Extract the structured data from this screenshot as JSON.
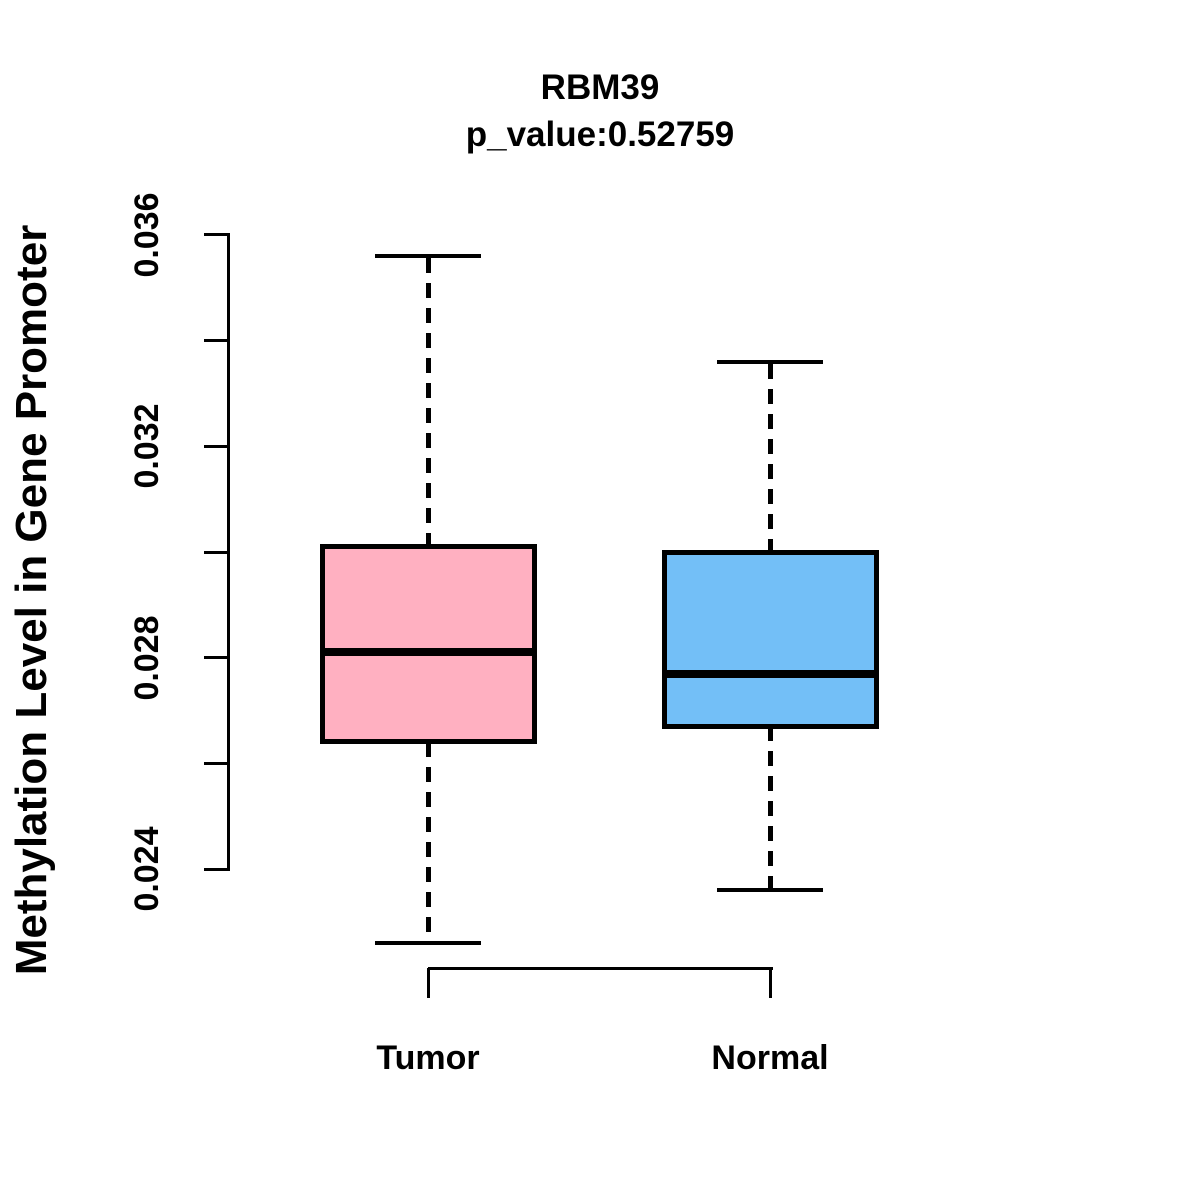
{
  "chart_data": {
    "type": "boxplot",
    "title": "RBM39",
    "subtitle": "p_value:0.52759",
    "gene": "RBM39",
    "p_value": 0.52759,
    "ylabel": "Methylation Level in Gene Promoter",
    "xlabel": "",
    "categories": [
      "Tumor",
      "Normal"
    ],
    "y_axis": {
      "min": 0.024,
      "max": 0.036,
      "tick_step": 0.002,
      "tick_labels": [
        "0.024",
        "0.028",
        "0.032",
        "0.036"
      ]
    },
    "line_color": "#000000",
    "background_color": "#ffffff",
    "series": [
      {
        "name": "Tumor",
        "color": "#FFB0C1",
        "lower_whisker": 0.0226,
        "q1": 0.0264,
        "median": 0.0281,
        "q3": 0.0301,
        "upper_whisker": 0.0356
      },
      {
        "name": "Normal",
        "color": "#73BFF7",
        "lower_whisker": 0.0236,
        "q1": 0.0267,
        "median": 0.0277,
        "q3": 0.03,
        "upper_whisker": 0.0336
      }
    ],
    "legend": null,
    "grid": false
  }
}
